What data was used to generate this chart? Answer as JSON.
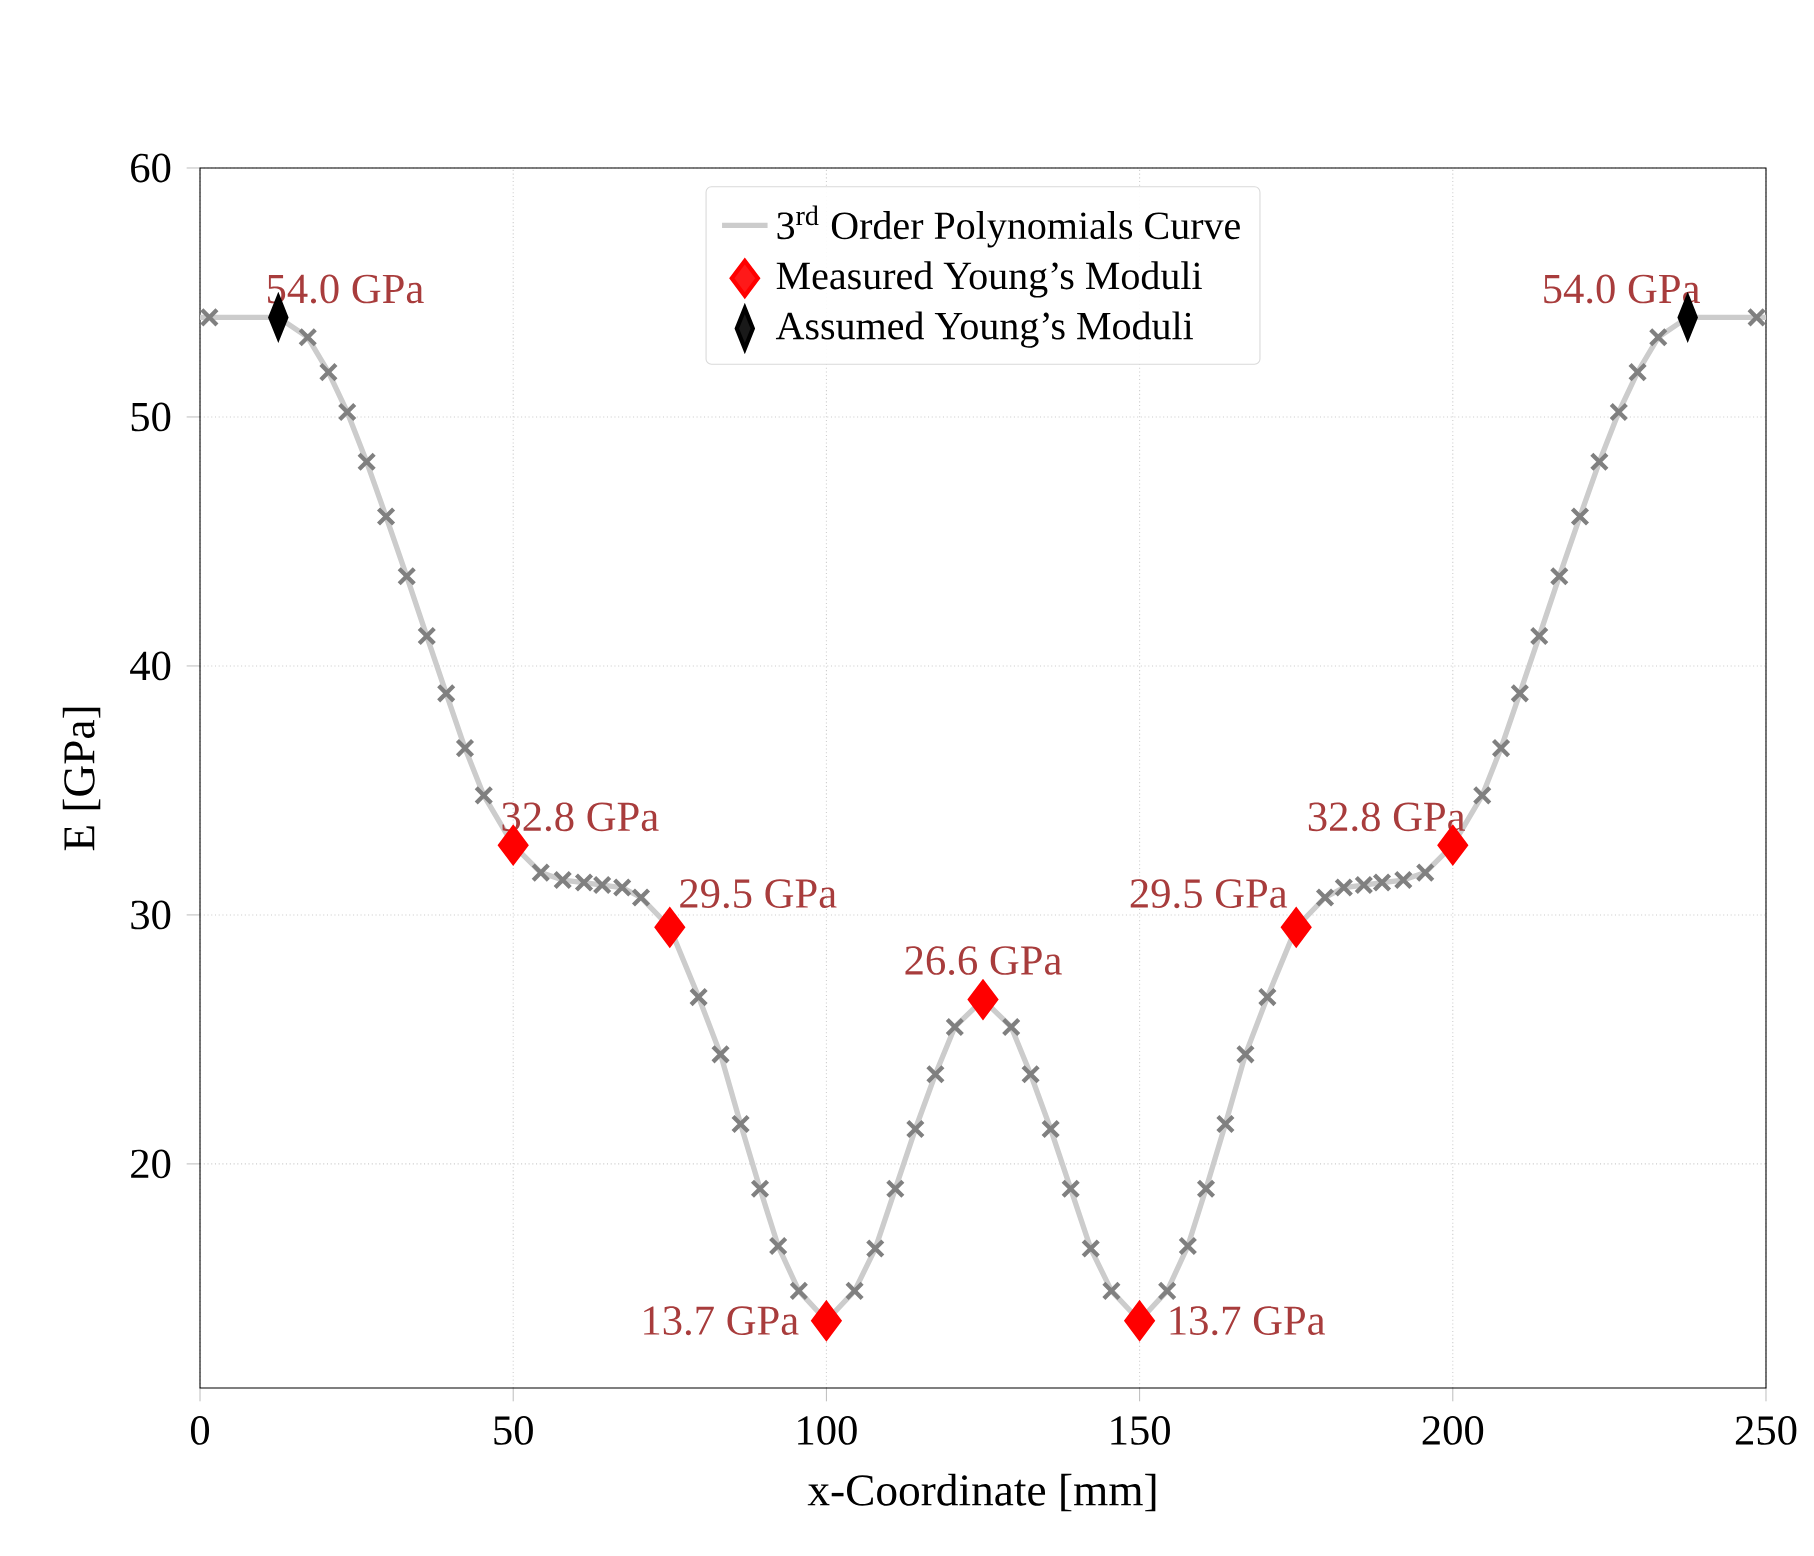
{
  "chart_data": {
    "type": "scatter",
    "xlabel": "x-Coordinate [mm]",
    "ylabel": "E [GPa]",
    "xlim": [
      0,
      250
    ],
    "ylim": [
      11,
      60
    ],
    "xticks": [
      0,
      50,
      100,
      150,
      200,
      250
    ],
    "yticks": [
      20,
      30,
      40,
      50,
      60
    ],
    "grid": true,
    "legend": "top",
    "series": [
      {
        "type": "line",
        "name": "3$^{rd}$ Order Polynomials Curve",
        "color": "#cccccc",
        "marker": "none",
        "x": [
          0,
          1.5,
          12.5,
          17.2,
          20.5,
          23.5,
          26.6,
          29.7,
          33.0,
          36.2,
          39.3,
          42.3,
          45.3,
          50,
          54.4,
          57.9,
          61.3,
          64.2,
          67.4,
          70.4,
          75,
          79.6,
          83.1,
          86.3,
          89.4,
          92.3,
          95.6,
          100,
          104.5,
          107.8,
          111.0,
          114.2,
          117.4,
          120.5,
          125,
          129.5,
          132.6,
          135.8,
          139.0,
          142.2,
          145.5,
          150,
          154.4,
          157.7,
          160.6,
          163.7,
          166.9,
          170.4,
          175,
          179.6,
          182.6,
          185.8,
          188.7,
          192.1,
          195.6,
          200,
          204.7,
          207.7,
          210.7,
          213.8,
          217.0,
          220.3,
          223.4,
          226.5,
          229.5,
          232.8,
          237.5,
          248.5,
          250
        ],
        "values": [
          54.0,
          54.0,
          54.0,
          53.2,
          51.8,
          50.2,
          48.2,
          46.0,
          43.6,
          41.2,
          38.9,
          36.7,
          34.8,
          32.8,
          31.7,
          31.4,
          31.3,
          31.2,
          31.1,
          30.7,
          29.5,
          26.7,
          24.4,
          21.6,
          19.0,
          16.7,
          14.9,
          13.7,
          14.9,
          16.6,
          19.0,
          21.4,
          23.6,
          25.5,
          26.6,
          25.5,
          23.6,
          21.4,
          19.0,
          16.6,
          14.9,
          13.7,
          14.9,
          16.7,
          19.0,
          21.6,
          24.4,
          26.7,
          29.5,
          30.7,
          31.1,
          31.2,
          31.3,
          31.4,
          31.7,
          32.8,
          34.8,
          36.7,
          38.9,
          41.2,
          43.6,
          46.0,
          48.2,
          50.2,
          51.8,
          53.2,
          54.0,
          54.0,
          54.0
        ]
      },
      {
        "color": "#808080",
        "marker": "cross",
        "x": [
          1.5,
          17.2,
          20.5,
          23.5,
          26.6,
          29.7,
          33.0,
          36.2,
          39.3,
          42.3,
          45.3,
          54.4,
          57.9,
          61.3,
          64.2,
          67.4,
          70.4,
          79.6,
          83.1,
          86.3,
          89.4,
          92.3,
          95.6,
          104.5,
          107.8,
          111.0,
          114.2,
          117.4,
          120.5,
          129.5,
          132.6,
          135.8,
          139.0,
          142.2,
          145.5,
          154.4,
          157.7,
          160.6,
          163.7,
          166.9,
          170.4,
          179.6,
          182.6,
          185.8,
          188.7,
          192.1,
          195.6,
          204.7,
          207.7,
          210.7,
          213.8,
          217.0,
          220.3,
          223.4,
          226.5,
          229.5,
          232.8,
          248.5
        ],
        "values": [
          54.0,
          53.2,
          51.8,
          50.2,
          48.2,
          46.0,
          43.6,
          41.2,
          38.9,
          36.7,
          34.8,
          31.7,
          31.4,
          31.3,
          31.2,
          31.1,
          30.7,
          26.7,
          24.4,
          21.6,
          19.0,
          16.7,
          14.9,
          14.9,
          16.6,
          19.0,
          21.4,
          23.6,
          25.5,
          25.5,
          23.6,
          21.4,
          19.0,
          16.6,
          14.9,
          14.9,
          16.7,
          19.0,
          21.6,
          24.4,
          26.7,
          30.7,
          31.1,
          31.2,
          31.3,
          31.4,
          31.7,
          34.8,
          36.7,
          38.9,
          41.2,
          43.6,
          46.0,
          48.2,
          50.2,
          51.8,
          53.2,
          54.0
        ]
      },
      {
        "name": "Measured Young’s Moduli",
        "color": "#ff0000",
        "marker": "diamond",
        "x": [
          50,
          75,
          100,
          125,
          150,
          175,
          200
        ],
        "values": [
          32.8,
          29.5,
          13.7,
          26.6,
          13.7,
          29.5,
          32.8
        ],
        "value_labels": [
          "32.8 GPa",
          "29.5 GPa",
          "13.7 GPa",
          "26.6 GPa",
          "13.7 GPa",
          "29.5 GPa",
          "32.8 GPa"
        ]
      },
      {
        "name": "Assumed Young’s Moduli",
        "color": "#000000",
        "marker": "diamond",
        "x": [
          12.5,
          237.5
        ],
        "values": [
          54.0,
          54.0
        ],
        "value_labels": [
          "54.0 GPa",
          "54.0 GPa"
        ]
      }
    ]
  }
}
